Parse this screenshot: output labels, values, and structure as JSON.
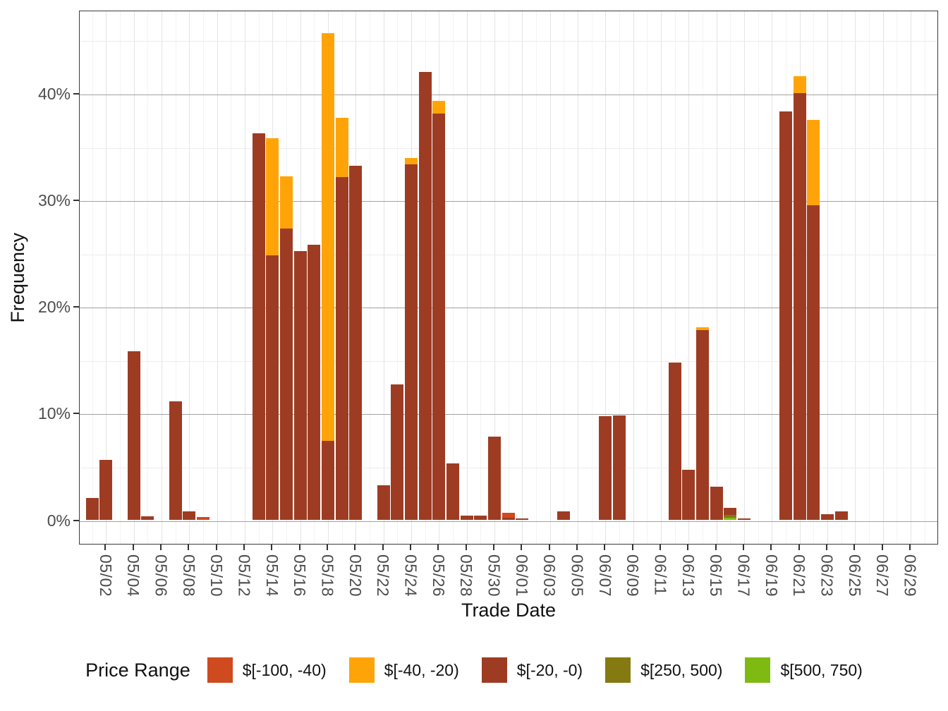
{
  "y_axis": {
    "title": "Frequency",
    "tick_labels": [
      "0%",
      "10%",
      "20%",
      "30%",
      "40%"
    ],
    "tick_values": [
      0,
      10,
      20,
      30,
      40
    ],
    "minor_tick_values": [
      5,
      15,
      25,
      35,
      45
    ]
  },
  "x_axis": {
    "title": "Trade Date",
    "tick_labels": [
      "05/02",
      "05/04",
      "05/06",
      "05/08",
      "05/10",
      "05/12",
      "05/14",
      "05/16",
      "05/18",
      "05/20",
      "05/22",
      "05/24",
      "05/26",
      "05/28",
      "05/30",
      "06/01",
      "06/03",
      "06/05",
      "06/07",
      "06/09",
      "06/11",
      "06/13",
      "06/15",
      "06/17",
      "06/19",
      "06/21",
      "06/23",
      "06/25",
      "06/27",
      "06/29"
    ]
  },
  "legend": {
    "title": "Price Range",
    "items": [
      {
        "label": "$[-100, -40)",
        "color": "#CF4A1F"
      },
      {
        "label": "$[-40, -20)",
        "color": "#FFA408"
      },
      {
        "label": "$[-20, -0)",
        "color": "#9D3C23"
      },
      {
        "label": "$[250, 500)",
        "color": "#857911"
      },
      {
        "label": "$[500, 750)",
        "color": "#7FBA12"
      }
    ]
  },
  "chart_data": {
    "type": "bar",
    "stacked": true,
    "unit": "%",
    "title": "",
    "xlabel": "Trade Date",
    "ylabel": "Frequency",
    "ylim": [
      0,
      47.9
    ],
    "grid": true,
    "legend_position": "bottom",
    "stacking_order_bottom_to_top": [
      "$[500, 750)",
      "$[250, 500)",
      "$[-20, -0)",
      "$[-40, -20)",
      "$[-100, -40)"
    ],
    "categories": [
      "05/01",
      "05/02",
      "05/04",
      "05/05",
      "05/07",
      "05/08",
      "05/09",
      "05/13",
      "05/14",
      "05/15",
      "05/16",
      "05/17",
      "05/18",
      "05/19",
      "05/20",
      "05/22",
      "05/23",
      "05/24",
      "05/25",
      "05/26",
      "05/27",
      "05/28",
      "05/29",
      "05/30",
      "05/31",
      "06/01",
      "06/04",
      "06/07",
      "06/08",
      "06/12",
      "06/13",
      "06/14",
      "06/15",
      "06/16",
      "06/17",
      "06/20",
      "06/21",
      "06/22",
      "06/23",
      "06/24"
    ],
    "series": [
      {
        "name": "$[-100, -40)",
        "color": "#CF4A1F",
        "values": [
          0,
          0,
          0,
          0,
          0,
          0,
          0.25,
          0,
          0,
          0,
          0,
          0,
          0,
          0,
          0,
          0,
          0,
          0,
          0,
          0,
          0,
          0,
          0,
          0,
          0.5,
          0,
          0,
          0,
          0,
          0,
          0,
          0,
          0,
          0,
          0,
          0,
          0,
          0,
          0,
          0
        ]
      },
      {
        "name": "$[-40, -20)",
        "color": "#FFA408",
        "values": [
          0,
          0,
          0,
          0,
          0,
          0,
          0,
          0,
          11.0,
          4.9,
          0,
          0,
          38.2,
          5.6,
          0,
          0,
          0,
          0.6,
          0,
          1.2,
          0,
          0,
          0,
          0,
          0,
          0,
          0,
          0,
          0,
          0,
          0,
          0.25,
          0,
          0,
          0,
          0,
          1.6,
          8.0,
          0,
          0
        ]
      },
      {
        "name": "$[-20, -0)",
        "color": "#9D3C23",
        "values": [
          2.0,
          5.6,
          15.8,
          0.3,
          11.1,
          0.8,
          0,
          36.2,
          24.8,
          27.3,
          25.2,
          25.8,
          7.4,
          32.1,
          33.2,
          3.2,
          12.7,
          33.3,
          42.0,
          38.1,
          5.3,
          0.35,
          0.35,
          7.8,
          0.15,
          0.1,
          0.8,
          9.7,
          9.75,
          14.7,
          4.7,
          17.8,
          3.1,
          0.7,
          0.1,
          38.3,
          40.0,
          29.5,
          0.5,
          0.75
        ]
      },
      {
        "name": "$[250, 500)",
        "color": "#857911",
        "values": [
          0,
          0,
          0,
          0,
          0,
          0,
          0,
          0,
          0,
          0,
          0,
          0,
          0,
          0,
          0,
          0,
          0,
          0,
          0,
          0,
          0,
          0,
          0,
          0,
          0,
          0,
          0,
          0,
          0,
          0,
          0,
          0,
          0,
          0.22,
          0,
          0,
          0,
          0,
          0,
          0
        ]
      },
      {
        "name": "$[500, 750)",
        "color": "#7FBA12",
        "values": [
          0,
          0,
          0,
          0,
          0,
          0,
          0,
          0,
          0,
          0,
          0,
          0,
          0,
          0,
          0,
          0,
          0,
          0,
          0,
          0,
          0,
          0,
          0,
          0,
          0,
          0,
          0,
          0,
          0,
          0,
          0,
          0,
          0,
          0.2,
          0,
          0,
          0,
          0,
          0,
          0
        ]
      }
    ]
  }
}
